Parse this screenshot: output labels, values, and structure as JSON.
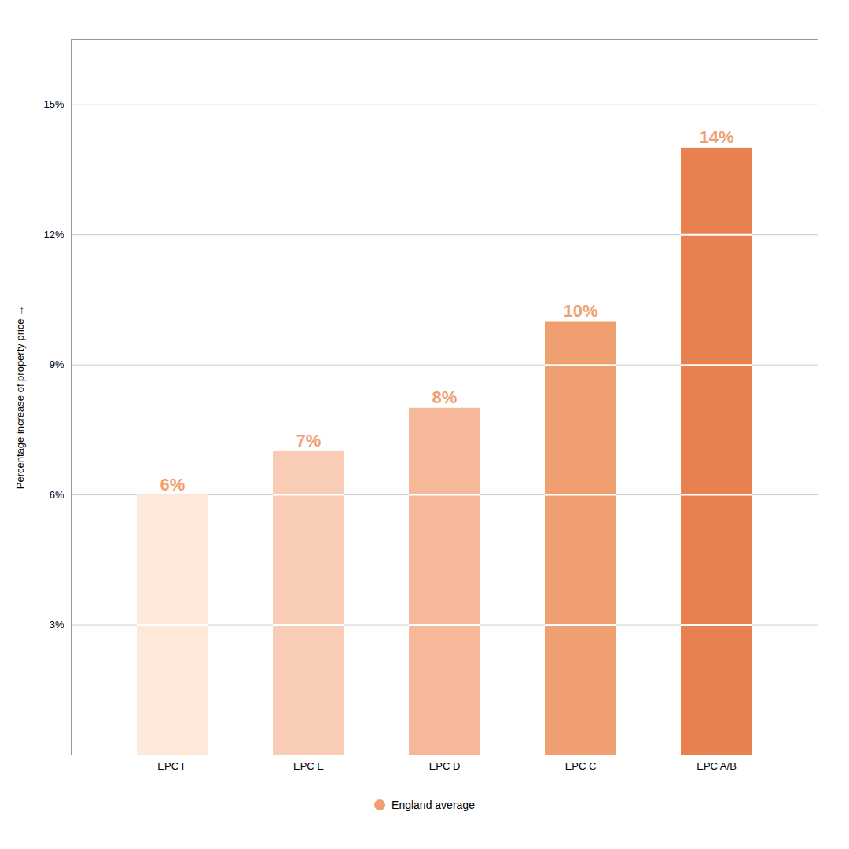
{
  "chart_data": {
    "type": "bar",
    "categories": [
      "EPC F",
      "EPC E",
      "EPC D",
      "EPC C",
      "EPC A/B"
    ],
    "series": [
      {
        "name": "England average",
        "color": "#f0a070",
        "colors": [
          "#fde8da",
          "#f9cdb5",
          "#f5b899",
          "#f0a070",
          "#e88050"
        ],
        "values": [
          6,
          7,
          8,
          10,
          14
        ],
        "value_labels": [
          "6%",
          "7%",
          "8%",
          "10%",
          "14%"
        ]
      }
    ],
    "ylabel": "Percentage increase of property price",
    "ylim": [
      0,
      16.5
    ],
    "yticks": [
      {
        "value": 3,
        "label": "3%"
      },
      {
        "value": 6,
        "label": "6%"
      },
      {
        "value": 9,
        "label": "9%"
      },
      {
        "value": 12,
        "label": "12%"
      },
      {
        "value": 15,
        "label": "15%"
      }
    ],
    "grid": true,
    "legend": "bottom",
    "data_labels": true
  }
}
